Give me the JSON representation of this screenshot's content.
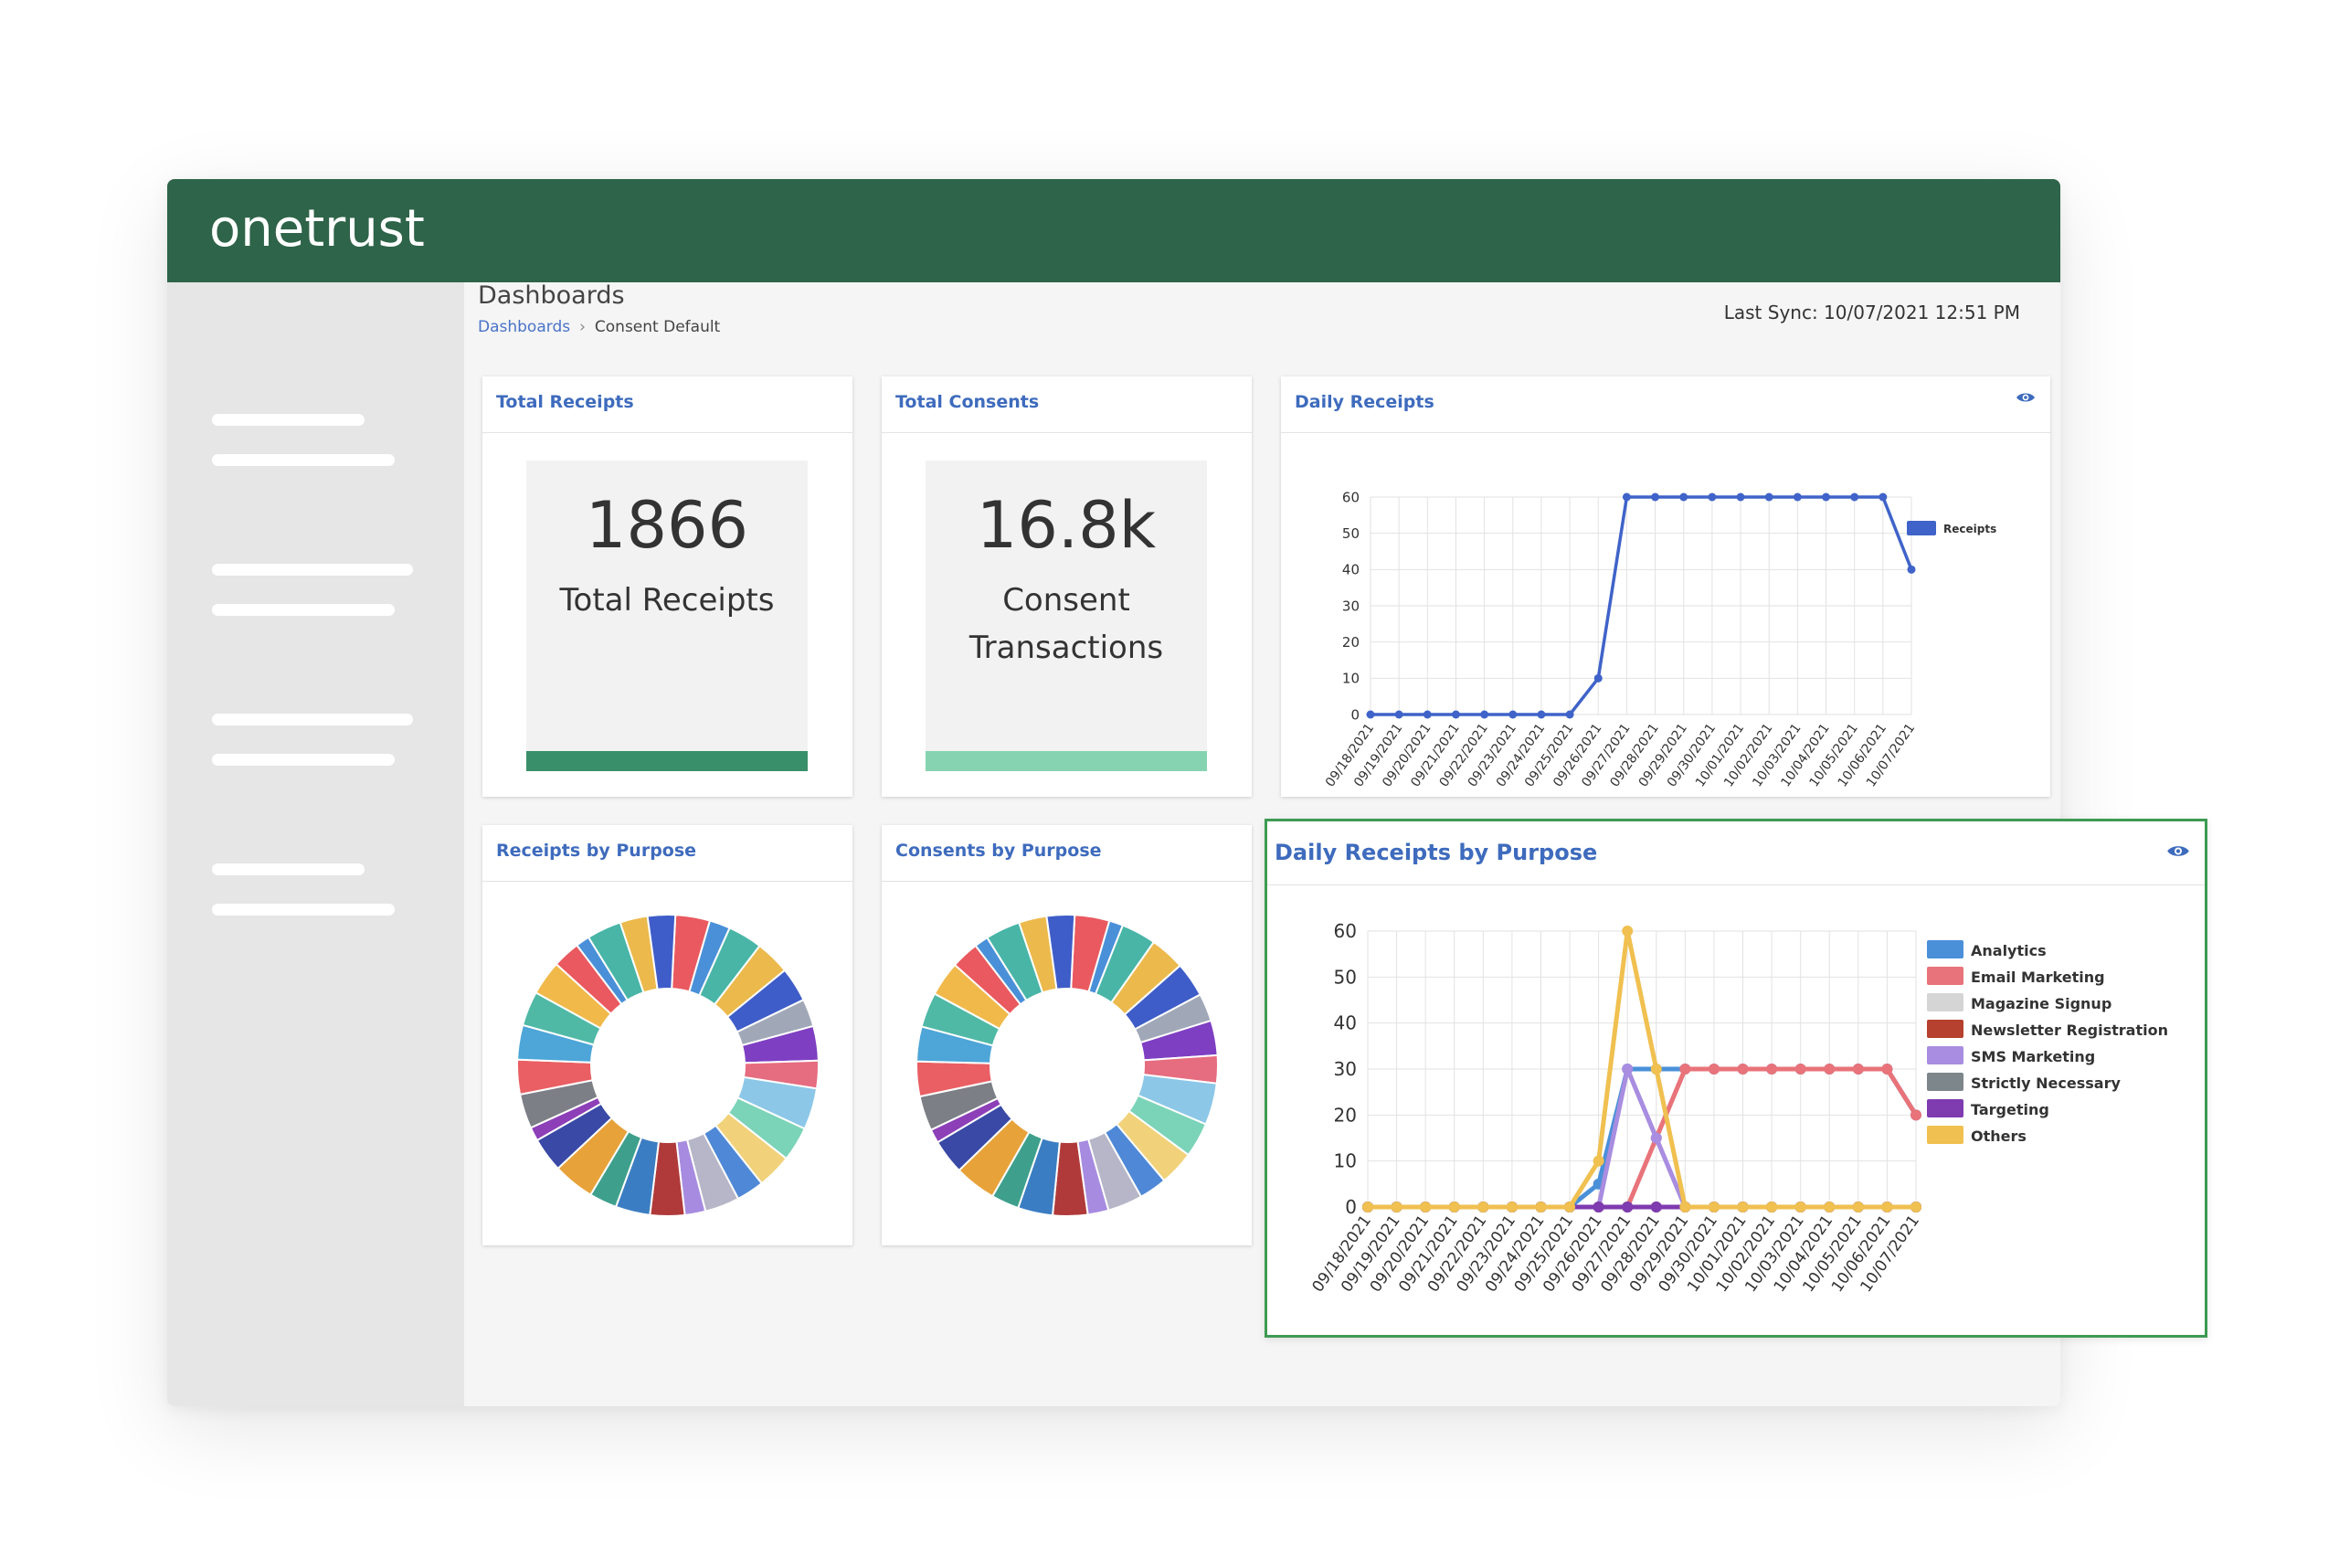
{
  "app": {
    "logo": "onetrust"
  },
  "header": {
    "title": "Dashboards",
    "breadcrumb": {
      "parent": "Dashboards",
      "separator": "›",
      "current": "Consent Default"
    },
    "last_sync": "Last Sync: 10/07/2021 12:51 PM"
  },
  "cards": {
    "total_receipts": {
      "title": "Total Receipts",
      "value": "1866",
      "label": "Total Receipts",
      "bar_color": "#3a8f6b"
    },
    "total_consents": {
      "title": "Total Consents",
      "value": "16.8k",
      "label": "Consent Transactions",
      "bar_color": "#86d3b1"
    },
    "daily_receipts": {
      "title": "Daily Receipts"
    },
    "receipts_by_purpose": {
      "title": "Receipts by Purpose"
    },
    "consents_by_purpose": {
      "title": "Consents by Purpose"
    },
    "daily_receipts_by_purpose": {
      "title": "Daily Receipts by Purpose"
    }
  },
  "icons": {
    "eye": "eye-icon"
  },
  "colors": {
    "brand_green": "#2e6449",
    "link_blue": "#3e6bbd",
    "highlight_border": "#3e9a52"
  },
  "chart_data": [
    {
      "type": "line",
      "x": [
        "09/18/2021",
        "09/19/2021",
        "09/20/2021",
        "09/21/2021",
        "09/22/2021",
        "09/23/2021",
        "09/24/2021",
        "09/25/2021",
        "09/26/2021",
        "09/27/2021",
        "09/28/2021",
        "09/29/2021",
        "09/30/2021",
        "10/01/2021",
        "10/02/2021",
        "10/03/2021",
        "10/04/2021",
        "10/05/2021",
        "10/06/2021",
        "10/07/2021"
      ],
      "series": [
        {
          "name": "Receipts",
          "color": "#3f63c9",
          "values": [
            0,
            0,
            0,
            0,
            0,
            0,
            0,
            0,
            10,
            60,
            60,
            60,
            60,
            60,
            60,
            60,
            60,
            60,
            60,
            40
          ]
        }
      ],
      "yticks": [
        0,
        10,
        20,
        30,
        40,
        50,
        60
      ],
      "ylim": [
        0,
        60
      ],
      "grid": true,
      "legend": "right"
    },
    {
      "type": "pie",
      "values": [
        5,
        3,
        5,
        5,
        5,
        4,
        5,
        4,
        6,
        5,
        5,
        4,
        5,
        3,
        5,
        5,
        4,
        6,
        5,
        2,
        5,
        5,
        5,
        5,
        5,
        4,
        2,
        5,
        4,
        4
      ],
      "colors": [
        "#e9595f",
        "#4a90d9",
        "#48b5a7",
        "#ecb94c",
        "#3f5dc8",
        "#a0a8b8",
        "#7e3fc2",
        "#e66c80",
        "#8cc7e8",
        "#7bd3b8",
        "#f1d27a",
        "#4f88d6",
        "#b6b6c8",
        "#a78be0",
        "#b03a3a",
        "#3b7dc2",
        "#3ea08c",
        "#e8a23a",
        "#3949a5",
        "#8d3fb8",
        "#7d7f86",
        "#e95f63",
        "#4da5d8",
        "#4fb9a6",
        "#f0b94a",
        "#e9595f",
        "#4a90d9",
        "#48b5a7",
        "#ecb94c",
        "#3f5dc8"
      ],
      "donut": true
    },
    {
      "type": "pie",
      "values": [
        5,
        2,
        5,
        5,
        5,
        4,
        5,
        4,
        6,
        5,
        5,
        4,
        5,
        3,
        5,
        5,
        4,
        6,
        5,
        2,
        5,
        5,
        5,
        5,
        5,
        4,
        2,
        5,
        4,
        4
      ],
      "colors": [
        "#e9595f",
        "#4a90d9",
        "#48b5a7",
        "#ecb94c",
        "#3f5dc8",
        "#a0a8b8",
        "#7e3fc2",
        "#e66c80",
        "#8cc7e8",
        "#7bd3b8",
        "#f1d27a",
        "#4f88d6",
        "#b6b6c8",
        "#a78be0",
        "#b03a3a",
        "#3b7dc2",
        "#3ea08c",
        "#e8a23a",
        "#3949a5",
        "#8d3fb8",
        "#7d7f86",
        "#e95f63",
        "#4da5d8",
        "#4fb9a6",
        "#f0b94a",
        "#e9595f",
        "#4a90d9",
        "#48b5a7",
        "#ecb94c",
        "#3f5dc8"
      ],
      "donut": true
    },
    {
      "type": "line",
      "x": [
        "09/18/2021",
        "09/19/2021",
        "09/20/2021",
        "09/21/2021",
        "09/22/2021",
        "09/23/2021",
        "09/24/2021",
        "09/25/2021",
        "09/26/2021",
        "09/27/2021",
        "09/28/2021",
        "09/29/2021",
        "09/30/2021",
        "10/01/2021",
        "10/02/2021",
        "10/03/2021",
        "10/04/2021",
        "10/05/2021",
        "10/06/2021",
        "10/07/2021"
      ],
      "series": [
        {
          "name": "Analytics",
          "color": "#4a90d9",
          "values": [
            0,
            0,
            0,
            0,
            0,
            0,
            0,
            0,
            5,
            30,
            30,
            30,
            30,
            30,
            30,
            30,
            30,
            30,
            30,
            20
          ]
        },
        {
          "name": "Email Marketing",
          "color": "#e9737a",
          "values": [
            0,
            0,
            0,
            0,
            0,
            0,
            0,
            0,
            0,
            0,
            15,
            30,
            30,
            30,
            30,
            30,
            30,
            30,
            30,
            20
          ]
        },
        {
          "name": "Magazine Signup",
          "color": "#d5d5d5",
          "values": [
            0,
            0,
            0,
            0,
            0,
            0,
            0,
            0,
            0,
            0,
            0,
            0,
            0,
            0,
            0,
            0,
            0,
            0,
            0,
            0
          ]
        },
        {
          "name": "Newsletter Registration",
          "color": "#b5412e",
          "values": [
            0,
            0,
            0,
            0,
            0,
            0,
            0,
            0,
            0,
            0,
            0,
            0,
            0,
            0,
            0,
            0,
            0,
            0,
            0,
            0
          ]
        },
        {
          "name": "SMS Marketing",
          "color": "#a88de0",
          "values": [
            0,
            0,
            0,
            0,
            0,
            0,
            0,
            0,
            0,
            30,
            15,
            0,
            0,
            0,
            0,
            0,
            0,
            0,
            0,
            0
          ]
        },
        {
          "name": "Strictly Necessary",
          "color": "#7d868a",
          "values": [
            0,
            0,
            0,
            0,
            0,
            0,
            0,
            0,
            0,
            0,
            0,
            0,
            0,
            0,
            0,
            0,
            0,
            0,
            0,
            0
          ]
        },
        {
          "name": "Targeting",
          "color": "#7f3bb0",
          "values": [
            0,
            0,
            0,
            0,
            0,
            0,
            0,
            0,
            0,
            0,
            0,
            0,
            0,
            0,
            0,
            0,
            0,
            0,
            0,
            0
          ]
        },
        {
          "name": "Others",
          "color": "#f0c050",
          "values": [
            0,
            0,
            0,
            0,
            0,
            0,
            0,
            0,
            10,
            60,
            30,
            0,
            0,
            0,
            0,
            0,
            0,
            0,
            0,
            0
          ]
        }
      ],
      "yticks": [
        0,
        10,
        20,
        30,
        40,
        50,
        60
      ],
      "ylim": [
        0,
        60
      ],
      "grid": true,
      "legend": "right"
    }
  ]
}
